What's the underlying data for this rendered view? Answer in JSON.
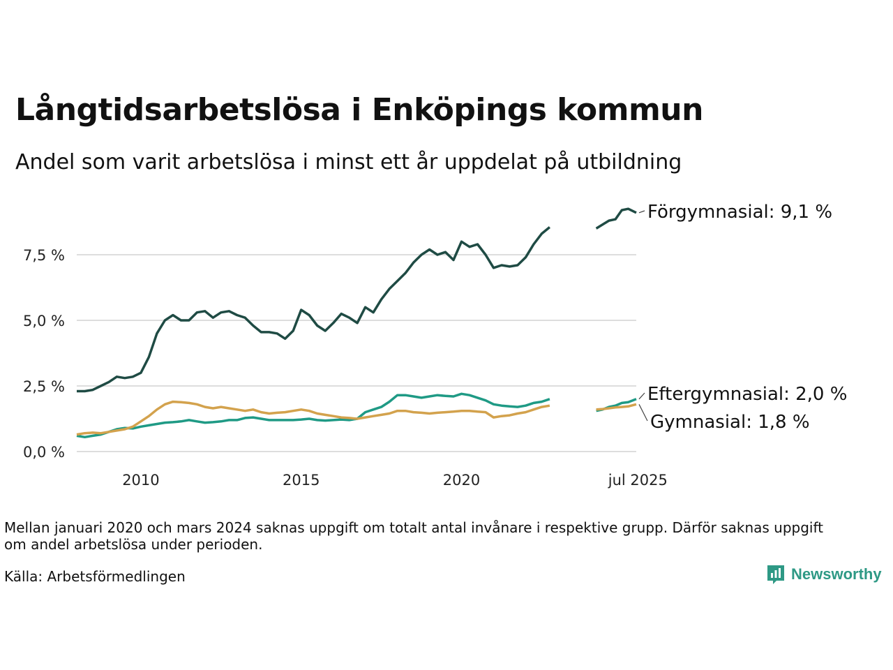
{
  "header": {
    "title": "Långtidsarbetslösa i Enköpings kommun",
    "subtitle": "Andel som varit arbetslösa i minst ett år uppdelat på utbildning"
  },
  "footer": {
    "note": "Mellan januari 2020 och mars 2024 saknas uppgift om totalt antal invånare i respektive grupp. Därför saknas uppgift om andel arbetslösa under perioden.",
    "source": "Källa: Arbetsförmedlingen",
    "brand": "Newsworthy"
  },
  "colors": {
    "forgymnasial": "#1f4b44",
    "eftergymnasial": "#1f9a85",
    "gymnasial": "#d3a24d",
    "grid": "#dddddd",
    "brand": "#2e9985"
  },
  "chart_data": {
    "type": "line",
    "title": "Långtidsarbetslösa i Enköpings kommun",
    "subtitle": "Andel som varit arbetslösa i minst ett år uppdelat på utbildning",
    "y_unit": "%",
    "ylim": [
      0,
      9.5
    ],
    "y_ticks": [
      {
        "value": 0,
        "label": "0,0 %"
      },
      {
        "value": 2.5,
        "label": "2,5 %"
      },
      {
        "value": 5,
        "label": "5,0 %"
      },
      {
        "value": 7.5,
        "label": "7,5 %"
      }
    ],
    "x_ticks": [
      {
        "year": 2010,
        "label": "2010"
      },
      {
        "year": 2015,
        "label": "2015"
      },
      {
        "year": 2020,
        "label": "2020"
      },
      {
        "year": 2025.5,
        "label": "jul 2025"
      }
    ],
    "xlim": [
      2008.0,
      2025.45
    ],
    "grid": true,
    "legend": "direct labels at line ends",
    "series": [
      {
        "name": "Förgymnasial",
        "end_label": "Förgymnasial: 9,1 %",
        "segments": [
          [
            [
              2008.0,
              2.3
            ],
            [
              2008.25,
              2.3
            ],
            [
              2008.5,
              2.35
            ],
            [
              2008.75,
              2.5
            ],
            [
              2009.0,
              2.65
            ],
            [
              2009.25,
              2.85
            ],
            [
              2009.5,
              2.8
            ],
            [
              2009.75,
              2.85
            ],
            [
              2010.0,
              3.0
            ],
            [
              2010.25,
              3.6
            ],
            [
              2010.5,
              4.5
            ],
            [
              2010.75,
              5.0
            ],
            [
              2011.0,
              5.2
            ],
            [
              2011.25,
              5.0
            ],
            [
              2011.5,
              5.0
            ],
            [
              2011.75,
              5.3
            ],
            [
              2012.0,
              5.35
            ],
            [
              2012.25,
              5.1
            ],
            [
              2012.5,
              5.3
            ],
            [
              2012.75,
              5.35
            ],
            [
              2013.0,
              5.2
            ],
            [
              2013.25,
              5.1
            ],
            [
              2013.5,
              4.8
            ],
            [
              2013.75,
              4.55
            ],
            [
              2014.0,
              4.55
            ],
            [
              2014.25,
              4.5
            ],
            [
              2014.5,
              4.3
            ],
            [
              2014.75,
              4.6
            ],
            [
              2015.0,
              5.4
            ],
            [
              2015.25,
              5.2
            ],
            [
              2015.5,
              4.8
            ],
            [
              2015.75,
              4.6
            ],
            [
              2016.0,
              4.9
            ],
            [
              2016.25,
              5.25
            ],
            [
              2016.5,
              5.1
            ],
            [
              2016.75,
              4.9
            ],
            [
              2017.0,
              5.5
            ],
            [
              2017.25,
              5.3
            ],
            [
              2017.5,
              5.8
            ],
            [
              2017.75,
              6.2
            ],
            [
              2018.0,
              6.5
            ],
            [
              2018.25,
              6.8
            ],
            [
              2018.5,
              7.2
            ],
            [
              2018.75,
              7.5
            ],
            [
              2019.0,
              7.7
            ],
            [
              2019.25,
              7.5
            ],
            [
              2019.5,
              7.6
            ],
            [
              2019.75,
              7.3
            ],
            [
              2020.0,
              8.0
            ],
            [
              2020.25,
              7.8
            ],
            [
              2020.5,
              7.9
            ],
            [
              2020.75,
              7.5
            ],
            [
              2021.0,
              7.0
            ],
            [
              2021.25,
              7.1
            ],
            [
              2021.5,
              7.05
            ],
            [
              2021.75,
              7.1
            ],
            [
              2022.0,
              7.4
            ],
            [
              2022.25,
              7.9
            ],
            [
              2022.5,
              8.3
            ],
            [
              2022.75,
              8.55
            ]
          ],
          [
            [
              2024.2,
              8.5
            ],
            [
              2024.4,
              8.65
            ],
            [
              2024.6,
              8.8
            ],
            [
              2024.8,
              8.85
            ],
            [
              2025.0,
              9.2
            ],
            [
              2025.2,
              9.25
            ],
            [
              2025.45,
              9.1
            ]
          ]
        ]
      },
      {
        "name": "Eftergymnasial",
        "end_label": "Eftergymnasial: 2,0 %",
        "segments": [
          [
            [
              2008.0,
              0.6
            ],
            [
              2008.25,
              0.55
            ],
            [
              2008.5,
              0.6
            ],
            [
              2008.75,
              0.65
            ],
            [
              2009.0,
              0.75
            ],
            [
              2009.25,
              0.85
            ],
            [
              2009.5,
              0.9
            ],
            [
              2009.75,
              0.88
            ],
            [
              2010.0,
              0.95
            ],
            [
              2010.25,
              1.0
            ],
            [
              2010.5,
              1.05
            ],
            [
              2010.75,
              1.1
            ],
            [
              2011.0,
              1.12
            ],
            [
              2011.25,
              1.15
            ],
            [
              2011.5,
              1.2
            ],
            [
              2011.75,
              1.15
            ],
            [
              2012.0,
              1.1
            ],
            [
              2012.25,
              1.12
            ],
            [
              2012.5,
              1.15
            ],
            [
              2012.75,
              1.2
            ],
            [
              2013.0,
              1.2
            ],
            [
              2013.25,
              1.28
            ],
            [
              2013.5,
              1.3
            ],
            [
              2013.75,
              1.25
            ],
            [
              2014.0,
              1.2
            ],
            [
              2014.25,
              1.2
            ],
            [
              2014.5,
              1.2
            ],
            [
              2014.75,
              1.2
            ],
            [
              2015.0,
              1.22
            ],
            [
              2015.25,
              1.25
            ],
            [
              2015.5,
              1.2
            ],
            [
              2015.75,
              1.18
            ],
            [
              2016.0,
              1.2
            ],
            [
              2016.25,
              1.22
            ],
            [
              2016.5,
              1.2
            ],
            [
              2016.75,
              1.25
            ],
            [
              2017.0,
              1.5
            ],
            [
              2017.25,
              1.6
            ],
            [
              2017.5,
              1.7
            ],
            [
              2017.75,
              1.9
            ],
            [
              2018.0,
              2.15
            ],
            [
              2018.25,
              2.15
            ],
            [
              2018.5,
              2.1
            ],
            [
              2018.75,
              2.05
            ],
            [
              2019.0,
              2.1
            ],
            [
              2019.25,
              2.15
            ],
            [
              2019.5,
              2.12
            ],
            [
              2019.75,
              2.1
            ],
            [
              2020.0,
              2.2
            ],
            [
              2020.25,
              2.15
            ],
            [
              2020.5,
              2.05
            ],
            [
              2020.75,
              1.95
            ],
            [
              2021.0,
              1.8
            ],
            [
              2021.25,
              1.75
            ],
            [
              2021.5,
              1.72
            ],
            [
              2021.75,
              1.7
            ],
            [
              2022.0,
              1.75
            ],
            [
              2022.25,
              1.85
            ],
            [
              2022.5,
              1.9
            ],
            [
              2022.75,
              2.0
            ]
          ],
          [
            [
              2024.2,
              1.55
            ],
            [
              2024.4,
              1.6
            ],
            [
              2024.6,
              1.7
            ],
            [
              2024.8,
              1.75
            ],
            [
              2025.0,
              1.85
            ],
            [
              2025.2,
              1.88
            ],
            [
              2025.45,
              2.0
            ]
          ]
        ]
      },
      {
        "name": "Gymnasial",
        "end_label": "Gymnasial: 1,8 %",
        "segments": [
          [
            [
              2008.0,
              0.65
            ],
            [
              2008.25,
              0.7
            ],
            [
              2008.5,
              0.72
            ],
            [
              2008.75,
              0.7
            ],
            [
              2009.0,
              0.75
            ],
            [
              2009.25,
              0.8
            ],
            [
              2009.5,
              0.85
            ],
            [
              2009.75,
              0.95
            ],
            [
              2010.0,
              1.15
            ],
            [
              2010.25,
              1.35
            ],
            [
              2010.5,
              1.6
            ],
            [
              2010.75,
              1.8
            ],
            [
              2011.0,
              1.9
            ],
            [
              2011.25,
              1.88
            ],
            [
              2011.5,
              1.85
            ],
            [
              2011.75,
              1.8
            ],
            [
              2012.0,
              1.7
            ],
            [
              2012.25,
              1.65
            ],
            [
              2012.5,
              1.7
            ],
            [
              2012.75,
              1.65
            ],
            [
              2013.0,
              1.6
            ],
            [
              2013.25,
              1.55
            ],
            [
              2013.5,
              1.6
            ],
            [
              2013.75,
              1.5
            ],
            [
              2014.0,
              1.45
            ],
            [
              2014.25,
              1.48
            ],
            [
              2014.5,
              1.5
            ],
            [
              2014.75,
              1.55
            ],
            [
              2015.0,
              1.6
            ],
            [
              2015.25,
              1.55
            ],
            [
              2015.5,
              1.45
            ],
            [
              2015.75,
              1.4
            ],
            [
              2016.0,
              1.35
            ],
            [
              2016.25,
              1.3
            ],
            [
              2016.5,
              1.28
            ],
            [
              2016.75,
              1.25
            ],
            [
              2017.0,
              1.3
            ],
            [
              2017.25,
              1.35
            ],
            [
              2017.5,
              1.4
            ],
            [
              2017.75,
              1.45
            ],
            [
              2018.0,
              1.55
            ],
            [
              2018.25,
              1.55
            ],
            [
              2018.5,
              1.5
            ],
            [
              2018.75,
              1.48
            ],
            [
              2019.0,
              1.45
            ],
            [
              2019.25,
              1.48
            ],
            [
              2019.5,
              1.5
            ],
            [
              2019.75,
              1.52
            ],
            [
              2020.0,
              1.55
            ],
            [
              2020.25,
              1.55
            ],
            [
              2020.5,
              1.52
            ],
            [
              2020.75,
              1.5
            ],
            [
              2021.0,
              1.3
            ],
            [
              2021.25,
              1.35
            ],
            [
              2021.5,
              1.38
            ],
            [
              2021.75,
              1.45
            ],
            [
              2022.0,
              1.5
            ],
            [
              2022.25,
              1.6
            ],
            [
              2022.5,
              1.7
            ],
            [
              2022.75,
              1.75
            ]
          ],
          [
            [
              2024.2,
              1.6
            ],
            [
              2024.4,
              1.62
            ],
            [
              2024.6,
              1.65
            ],
            [
              2024.8,
              1.68
            ],
            [
              2025.0,
              1.7
            ],
            [
              2025.2,
              1.72
            ],
            [
              2025.45,
              1.8
            ]
          ]
        ]
      }
    ]
  }
}
